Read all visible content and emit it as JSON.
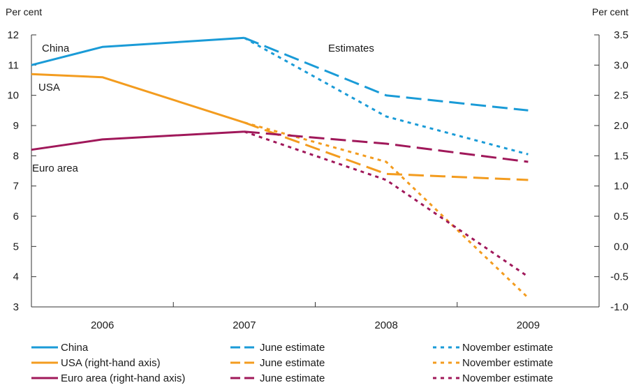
{
  "chart_data": {
    "type": "line",
    "left_axis": {
      "unit_label": "Per cent",
      "ylim": [
        3,
        12
      ],
      "ticks": [
        "3",
        "4",
        "5",
        "6",
        "7",
        "8",
        "9",
        "10",
        "11",
        "12"
      ]
    },
    "right_axis": {
      "unit_label": "Per cent",
      "ylim": [
        -1.0,
        3.5
      ],
      "ticks": [
        "-1.0",
        "-0.5",
        "0.0",
        "0.5",
        "1.0",
        "1.5",
        "2.0",
        "2.5",
        "3.0",
        "3.5"
      ]
    },
    "x_categories": [
      "2006",
      "2007",
      "2008",
      "2009"
    ],
    "annotations": {
      "estimates": "Estimates",
      "china": "China",
      "usa": "USA",
      "euro": "Euro area"
    },
    "grid": false,
    "legend_position": "bottom",
    "series": [
      {
        "name": "China",
        "axis": "left",
        "style": "solid",
        "color": "#1a9bd7",
        "points": [
          [
            2005.5,
            11.0
          ],
          [
            2006.0,
            11.6
          ],
          [
            2007.0,
            11.9
          ]
        ]
      },
      {
        "name": "June estimate",
        "group": "China",
        "axis": "left",
        "style": "long-dash",
        "color": "#1a9bd7",
        "points": [
          [
            2007.0,
            11.9
          ],
          [
            2008.0,
            10.0
          ],
          [
            2009.0,
            9.5
          ]
        ]
      },
      {
        "name": "November estimate",
        "group": "China",
        "axis": "left",
        "style": "short-dash",
        "color": "#1a9bd7",
        "points": [
          [
            2007.0,
            11.9
          ],
          [
            2008.0,
            9.3
          ],
          [
            2009.0,
            8.05
          ]
        ]
      },
      {
        "name": "USA (right-hand axis)",
        "axis": "right",
        "style": "solid",
        "color": "#f39c1f",
        "points": [
          [
            2005.5,
            2.85
          ],
          [
            2006.0,
            2.8
          ],
          [
            2007.0,
            2.05
          ]
        ]
      },
      {
        "name": "June estimate",
        "group": "USA",
        "axis": "right",
        "style": "long-dash",
        "color": "#f39c1f",
        "points": [
          [
            2007.0,
            2.05
          ],
          [
            2008.0,
            1.2
          ],
          [
            2009.0,
            1.1
          ]
        ]
      },
      {
        "name": "November estimate",
        "group": "USA",
        "axis": "right",
        "style": "short-dash",
        "color": "#f39c1f",
        "points": [
          [
            2007.0,
            2.05
          ],
          [
            2008.0,
            1.4
          ],
          [
            2009.0,
            -0.85
          ]
        ]
      },
      {
        "name": "Euro area (right-hand axis)",
        "axis": "right",
        "style": "solid",
        "color": "#a0185a",
        "points": [
          [
            2005.5,
            1.6
          ],
          [
            2006.0,
            1.77
          ],
          [
            2007.0,
            1.9
          ]
        ]
      },
      {
        "name": "June estimate",
        "group": "Euro area",
        "axis": "right",
        "style": "long-dash",
        "color": "#a0185a",
        "points": [
          [
            2007.0,
            1.9
          ],
          [
            2008.0,
            1.7
          ],
          [
            2009.0,
            1.4
          ]
        ]
      },
      {
        "name": "November estimate",
        "group": "Euro area",
        "axis": "right",
        "style": "short-dash",
        "color": "#a0185a",
        "points": [
          [
            2007.0,
            1.9
          ],
          [
            2008.0,
            1.1
          ],
          [
            2009.0,
            -0.5
          ]
        ]
      }
    ],
    "legend": [
      {
        "label": "China",
        "color": "#1a9bd7",
        "style": "solid"
      },
      {
        "label": "June estimate",
        "color": "#1a9bd7",
        "style": "long-dash"
      },
      {
        "label": "November estimate",
        "color": "#1a9bd7",
        "style": "short-dash"
      },
      {
        "label": "USA (right-hand axis)",
        "color": "#f39c1f",
        "style": "solid"
      },
      {
        "label": "June estimate",
        "color": "#f39c1f",
        "style": "long-dash"
      },
      {
        "label": "November estimate",
        "color": "#f39c1f",
        "style": "short-dash"
      },
      {
        "label": "Euro area (right-hand axis)",
        "color": "#a0185a",
        "style": "solid"
      },
      {
        "label": "June estimate",
        "color": "#a0185a",
        "style": "long-dash"
      },
      {
        "label": "November estimate",
        "color": "#a0185a",
        "style": "short-dash"
      }
    ]
  }
}
